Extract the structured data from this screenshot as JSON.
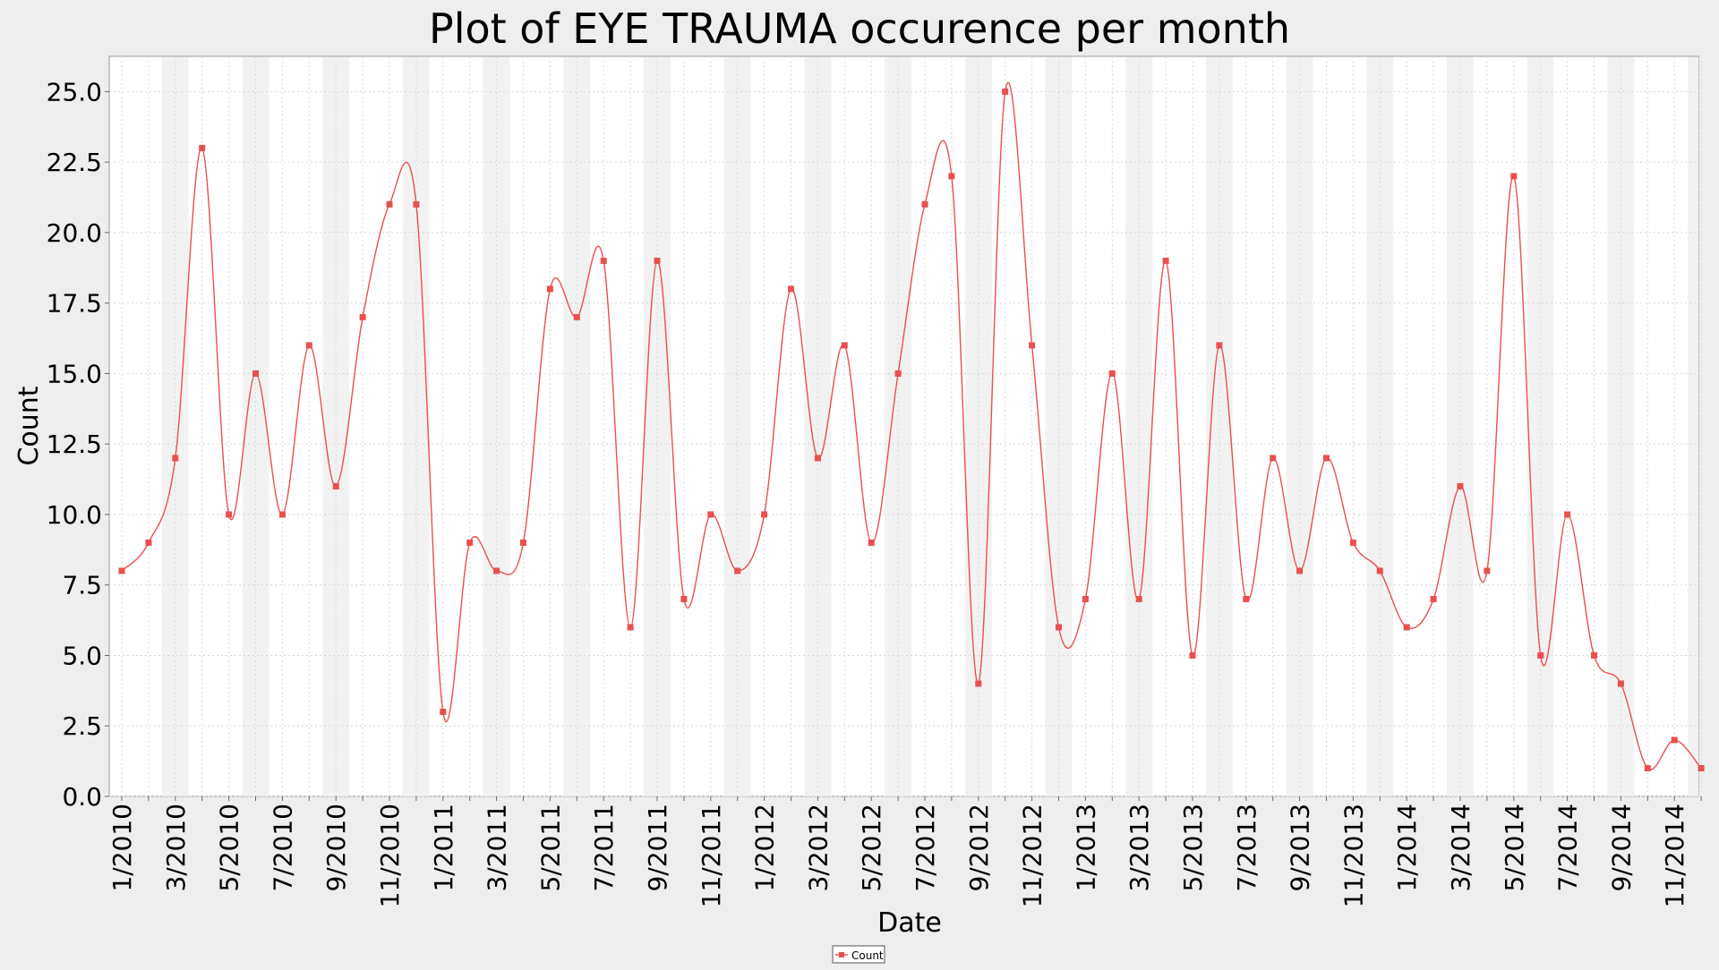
{
  "chart_data": {
    "type": "line",
    "title": "Plot of EYE TRAUMA occurence per month",
    "xlabel": "Date",
    "ylabel": "Count",
    "ylim": [
      0,
      26.25
    ],
    "yticks": [
      0.0,
      2.5,
      5.0,
      7.5,
      10.0,
      12.5,
      15.0,
      17.5,
      20.0,
      22.5,
      25.0
    ],
    "ytick_labels": [
      "0.0",
      "2.5",
      "5.0",
      "7.5",
      "10.0",
      "12.5",
      "15.0",
      "17.5",
      "20.0",
      "22.5",
      "25.0"
    ],
    "xtick_labels": [
      "1/2010",
      "3/2010",
      "5/2010",
      "7/2010",
      "9/2010",
      "11/2010",
      "1/2011",
      "3/2011",
      "5/2011",
      "7/2011",
      "9/2011",
      "11/2011",
      "1/2012",
      "3/2012",
      "5/2012",
      "7/2012",
      "9/2012",
      "11/2012",
      "1/2013",
      "3/2013",
      "5/2013",
      "7/2013",
      "9/2013",
      "11/2013",
      "1/2014",
      "3/2014",
      "5/2014",
      "7/2014",
      "9/2014",
      "11/2014"
    ],
    "grid": true,
    "legend_position": "bottom-center",
    "series_color": "#e8504f",
    "x": [
      "1/2010",
      "2/2010",
      "3/2010",
      "4/2010",
      "5/2010",
      "6/2010",
      "7/2010",
      "8/2010",
      "9/2010",
      "10/2010",
      "11/2010",
      "12/2010",
      "1/2011",
      "2/2011",
      "3/2011",
      "4/2011",
      "5/2011",
      "6/2011",
      "7/2011",
      "8/2011",
      "9/2011",
      "10/2011",
      "11/2011",
      "12/2011",
      "1/2012",
      "2/2012",
      "3/2012",
      "4/2012",
      "5/2012",
      "6/2012",
      "7/2012",
      "8/2012",
      "9/2012",
      "10/2012",
      "11/2012",
      "12/2012",
      "1/2013",
      "2/2013",
      "3/2013",
      "4/2013",
      "5/2013",
      "6/2013",
      "7/2013",
      "8/2013",
      "9/2013",
      "10/2013",
      "11/2013",
      "12/2013",
      "1/2014",
      "2/2014",
      "3/2014",
      "4/2014",
      "5/2014",
      "6/2014",
      "7/2014",
      "8/2014",
      "9/2014",
      "10/2014",
      "11/2014",
      "12/2014"
    ],
    "series": [
      {
        "name": "Count",
        "values": [
          8,
          9,
          12,
          23,
          10,
          15,
          10,
          16,
          11,
          17,
          21,
          21,
          3,
          9,
          8,
          9,
          18,
          17,
          19,
          6,
          19,
          7,
          10,
          8,
          10,
          18,
          12,
          16,
          9,
          15,
          21,
          22,
          4,
          25,
          16,
          6,
          7,
          15,
          7,
          19,
          5,
          16,
          7,
          12,
          8,
          12,
          9,
          8,
          6,
          7,
          11,
          8,
          22,
          5,
          10,
          5,
          4,
          1,
          2,
          1
        ]
      }
    ]
  }
}
